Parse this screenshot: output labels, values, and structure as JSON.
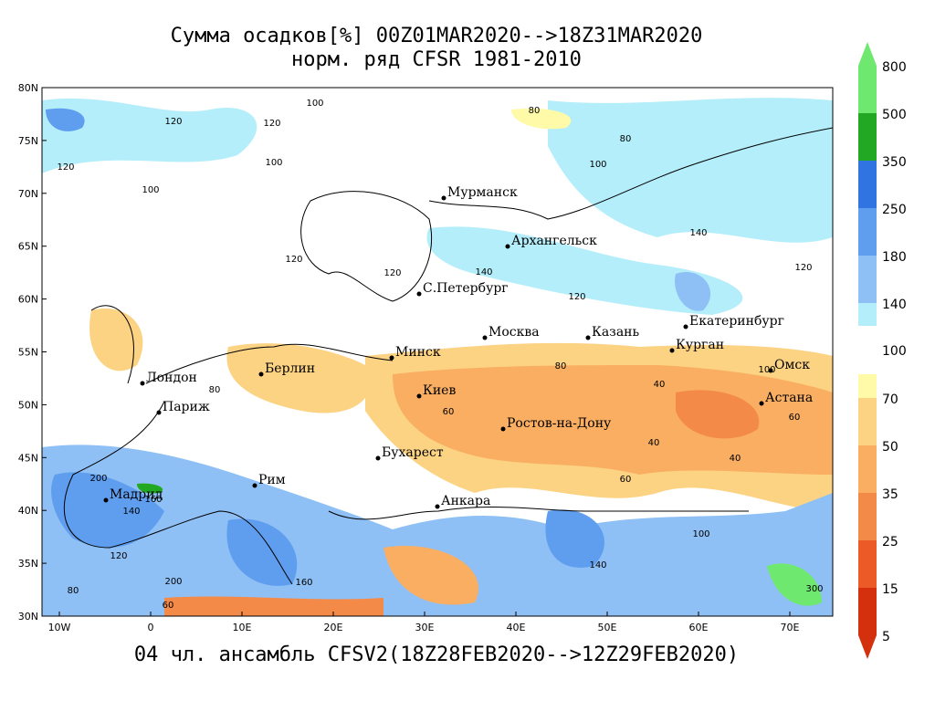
{
  "header": {
    "title_line1": "Сумма осадков[%] 00Z01MAR2020-->18Z31MAR2020",
    "title_line2": "норм. ряд CFSR 1981-2010",
    "caption": "04 чл. ансамбль CFSV2(18Z28FEB2020-->12Z29FEB2020)"
  },
  "map": {
    "lat_ticks": [
      {
        "value": 80,
        "label": "80N"
      },
      {
        "value": 75,
        "label": "75N"
      },
      {
        "value": 70,
        "label": "70N"
      },
      {
        "value": 65,
        "label": "65N"
      },
      {
        "value": 60,
        "label": "60N"
      },
      {
        "value": 55,
        "label": "55N"
      },
      {
        "value": 50,
        "label": "50N"
      },
      {
        "value": 45,
        "label": "45N"
      },
      {
        "value": 40,
        "label": "40N"
      },
      {
        "value": 35,
        "label": "35N"
      },
      {
        "value": 30,
        "label": "30N"
      }
    ],
    "lon_ticks": [
      {
        "value": -10,
        "label": "10W"
      },
      0,
      {
        "value": 10,
        "label": "10E"
      },
      {
        "value": 20,
        "label": "20E"
      },
      {
        "value": 30,
        "label": "30E"
      },
      {
        "value": 40,
        "label": "40E"
      },
      {
        "value": 50,
        "label": "50E"
      },
      {
        "value": 60,
        "label": "60E"
      },
      {
        "value": 70,
        "label": "70E"
      }
    ],
    "cities": [
      "Мурманск",
      "Архангельск",
      "С.Петербург",
      "Москва",
      "Казань",
      "Екатеринбург",
      "Курган",
      "Омск",
      "Астана",
      "Минск",
      "Киев",
      "Берлин",
      "Лондон",
      "Париж",
      "Рим",
      "Мадрид",
      "Бухарест",
      "Ростов-на-Дону",
      "Анкара"
    ],
    "contour_labels": [
      120,
      100,
      120,
      120,
      100,
      100,
      80,
      80,
      100,
      140,
      120,
      120,
      140,
      120,
      120,
      100,
      80,
      60,
      40,
      40,
      60,
      80,
      40,
      60,
      200,
      160,
      140,
      120,
      160,
      200,
      80,
      60,
      300,
      140,
      100
    ]
  },
  "colorbar": {
    "labels": [
      800,
      500,
      350,
      250,
      180,
      140,
      100,
      70,
      50,
      35,
      25,
      15,
      5
    ],
    "colors": [
      "#6ee86e",
      "#22a822",
      "#2f74e0",
      "#5f9eef",
      "#8fc0f5",
      "#b4eefa",
      "#fffaa8",
      "#fcd283",
      "#f9ae62",
      "#f48a48",
      "#ec5a28",
      "#d4300e"
    ]
  }
}
